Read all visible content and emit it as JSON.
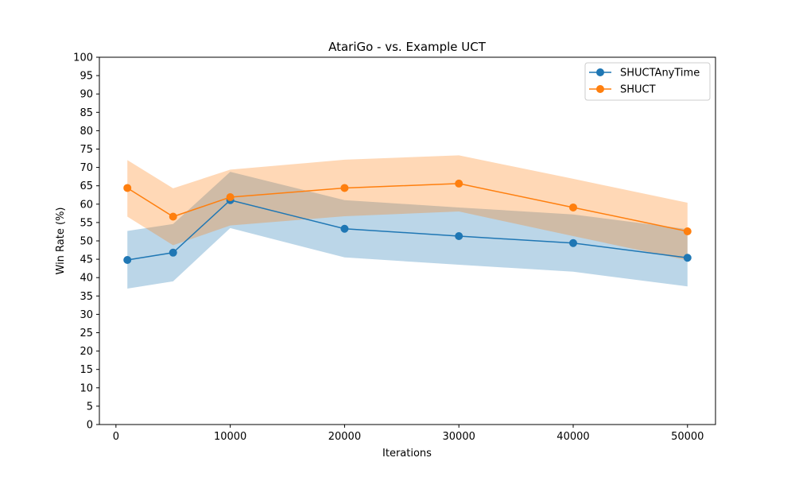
{
  "chart_data": {
    "type": "line",
    "title": "AtariGo - vs. Example UCT",
    "xlabel": "Iterations",
    "ylabel": "Win Rate (%)",
    "xlim": [
      -1450,
      52450
    ],
    "ylim": [
      0,
      100
    ],
    "x_ticks": [
      0,
      10000,
      20000,
      30000,
      40000,
      50000
    ],
    "y_ticks": [
      0,
      5,
      10,
      15,
      20,
      25,
      30,
      35,
      40,
      45,
      50,
      55,
      60,
      65,
      70,
      75,
      80,
      85,
      90,
      95,
      100
    ],
    "grid": false,
    "legend_position": "top-right",
    "x": [
      1000,
      5000,
      10000,
      20000,
      30000,
      40000,
      50000
    ],
    "series": [
      {
        "name": "SHUCTAnyTime",
        "color": "#1f77b4",
        "band_color": "#1f77b4",
        "values": [
          44.8,
          46.8,
          61.1,
          53.3,
          51.3,
          49.4,
          45.4
        ],
        "lower": [
          37.0,
          39.0,
          53.5,
          45.5,
          43.5,
          41.6,
          37.6
        ],
        "upper": [
          52.7,
          54.6,
          68.8,
          61.1,
          59.1,
          57.2,
          53.2
        ]
      },
      {
        "name": "SHUCT",
        "color": "#ff7f0e",
        "band_color": "#ff7f0e",
        "values": [
          64.4,
          56.6,
          61.9,
          64.4,
          65.6,
          59.1,
          52.6
        ],
        "lower": [
          56.6,
          48.8,
          54.2,
          56.7,
          58.0,
          51.3,
          44.7
        ],
        "upper": [
          72.0,
          64.3,
          69.4,
          72.1,
          73.3,
          66.9,
          60.4
        ]
      }
    ]
  }
}
